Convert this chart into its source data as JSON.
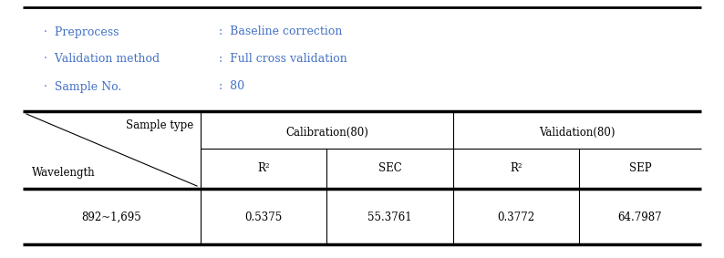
{
  "bg_color": "#ffffff",
  "text_color": "#000000",
  "blue_color": "#4472c4",
  "info_labels": [
    "·  Preprocess",
    "·  Validation method",
    "·  Sample No."
  ],
  "info_values": [
    ":  Baseline correction",
    ":  Full cross validation",
    ":  80"
  ],
  "header_row1_col0": "Sample type",
  "header_row1_col1": "Calibration(80)",
  "header_row1_col2": "Validation(80)",
  "header_row2": [
    "Wavelength",
    "R²",
    "SEC",
    "R²",
    "SEP"
  ],
  "data_row": [
    "892~1,695",
    "0.5375",
    "55.3761",
    "0.3772",
    "64.7987"
  ],
  "figsize": [
    7.94,
    2.83
  ],
  "dpi": 100
}
